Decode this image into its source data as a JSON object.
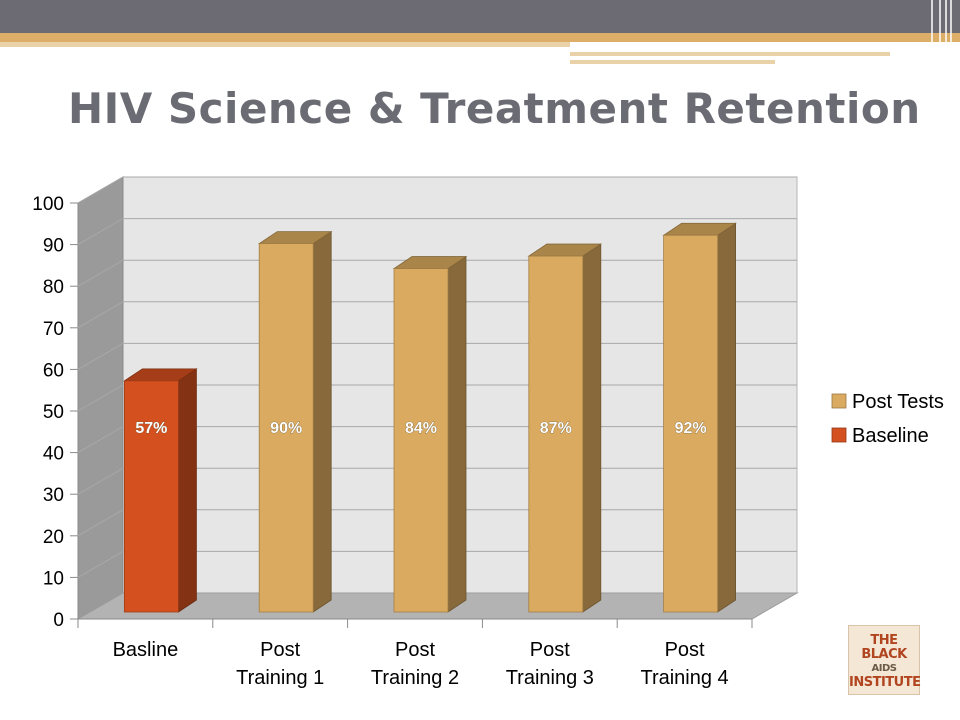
{
  "slide": {
    "title": "HIV Science & Treatment Retention",
    "logo_lines": [
      "THE BLACK",
      "AIDS",
      "INSTITUTE"
    ]
  },
  "colors": {
    "post_tests": "#d9aa5f",
    "baseline": "#d4501f",
    "title": "#6b6b73",
    "header": "#6c6a73",
    "header_stripe": "#dcae68"
  },
  "chart_data": {
    "type": "bar",
    "title": "",
    "xlabel": "",
    "ylabel": "",
    "ylim": [
      0,
      100
    ],
    "yticks": [
      "0",
      "10",
      "20",
      "30",
      "40",
      "50",
      "60",
      "70",
      "80",
      "90",
      "100"
    ],
    "categories": [
      [
        "Basline"
      ],
      [
        "Post",
        "Training 1"
      ],
      [
        "Post",
        "Training 2"
      ],
      [
        "Post",
        "Training 3"
      ],
      [
        "Post",
        "Training 4"
      ]
    ],
    "values": [
      57,
      90,
      84,
      87,
      92
    ],
    "data_labels": [
      "57%",
      "90%",
      "84%",
      "87%",
      "92%"
    ],
    "series_of_bar": [
      "Baseline",
      "Post Tests",
      "Post Tests",
      "Post Tests",
      "Post Tests"
    ],
    "legend": {
      "position": "right",
      "entries": [
        {
          "name": "Post Tests",
          "color": "#d9aa5f"
        },
        {
          "name": "Baseline",
          "color": "#d4501f"
        }
      ]
    },
    "grid": true,
    "three_d": true
  }
}
